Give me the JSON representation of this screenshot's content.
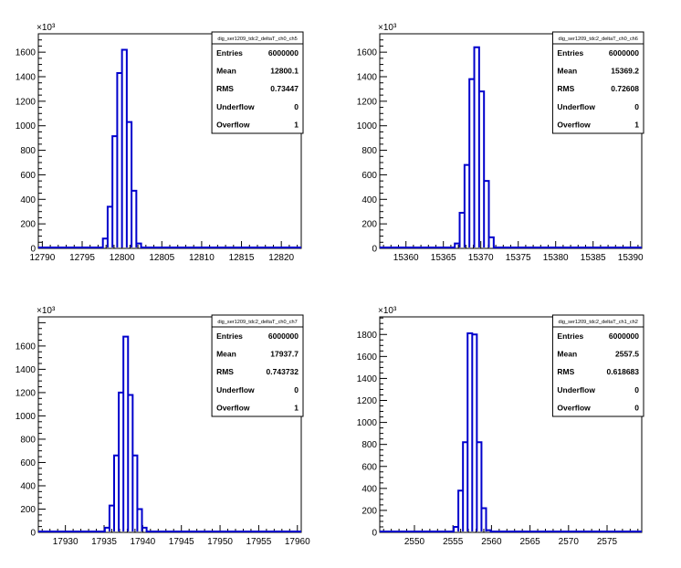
{
  "chart_data": [
    {
      "type": "histogram",
      "exponent_label": "×10³",
      "stats": {
        "title": "dig_ser1209_tdc2_deltaT_ch0_ch5",
        "rows": [
          {
            "label": "Entries",
            "value": "6000000"
          },
          {
            "label": "Mean",
            "value": "12800.1"
          },
          {
            "label": "RMS",
            "value": "0.73447"
          },
          {
            "label": "Underflow",
            "value": "0"
          },
          {
            "label": "Overflow",
            "value": "1"
          }
        ]
      },
      "xlim": [
        12789.5,
        12822.5
      ],
      "ylim": [
        0,
        1750
      ],
      "x_ticks": [
        12790,
        12795,
        12800,
        12805,
        12810,
        12815,
        12820
      ],
      "y_ticks": [
        0,
        200,
        400,
        600,
        800,
        1000,
        1200,
        1400,
        1600
      ],
      "bin_width": 0.6,
      "bins": [
        {
          "x": 12797.9,
          "y": 80
        },
        {
          "x": 12798.5,
          "y": 340
        },
        {
          "x": 12799.1,
          "y": 915
        },
        {
          "x": 12799.7,
          "y": 1430
        },
        {
          "x": 12800.3,
          "y": 1620
        },
        {
          "x": 12800.9,
          "y": 1030
        },
        {
          "x": 12801.5,
          "y": 470
        },
        {
          "x": 12802.1,
          "y": 40
        }
      ]
    },
    {
      "type": "histogram",
      "exponent_label": "×10³",
      "stats": {
        "title": "dig_ser1209_tdc2_deltaT_ch0_ch6",
        "rows": [
          {
            "label": "Entries",
            "value": "6000000"
          },
          {
            "label": "Mean",
            "value": "15369.2"
          },
          {
            "label": "RMS",
            "value": "0.72608"
          },
          {
            "label": "Underflow",
            "value": "0"
          },
          {
            "label": "Overflow",
            "value": "1"
          }
        ]
      },
      "xlim": [
        15356.5,
        15391.5
      ],
      "ylim": [
        0,
        1750
      ],
      "x_ticks": [
        15360,
        15365,
        15370,
        15375,
        15380,
        15385,
        15390
      ],
      "y_ticks": [
        0,
        200,
        400,
        600,
        800,
        1000,
        1200,
        1400,
        1600
      ],
      "bin_width": 0.65,
      "bins": [
        {
          "x": 15366.85,
          "y": 40
        },
        {
          "x": 15367.5,
          "y": 290
        },
        {
          "x": 15368.15,
          "y": 680
        },
        {
          "x": 15368.8,
          "y": 1380
        },
        {
          "x": 15369.45,
          "y": 1640
        },
        {
          "x": 15370.1,
          "y": 1280
        },
        {
          "x": 15370.75,
          "y": 550
        },
        {
          "x": 15371.4,
          "y": 90
        }
      ]
    },
    {
      "type": "histogram",
      "exponent_label": "×10³",
      "stats": {
        "title": "dig_ser1209_tdc2_deltaT_ch0_ch7",
        "rows": [
          {
            "label": "Entries",
            "value": "6000000"
          },
          {
            "label": "Mean",
            "value": "17937.7"
          },
          {
            "label": "RMS",
            "value": "0.743732"
          },
          {
            "label": "Underflow",
            "value": "0"
          },
          {
            "label": "Overflow",
            "value": "1"
          }
        ]
      },
      "xlim": [
        17926.5,
        17960.5
      ],
      "ylim": [
        0,
        1850
      ],
      "x_ticks": [
        17930,
        17935,
        17940,
        17945,
        17950,
        17955,
        17960
      ],
      "y_ticks": [
        0,
        200,
        400,
        600,
        800,
        1000,
        1200,
        1400,
        1600
      ],
      "bin_width": 0.6,
      "bins": [
        {
          "x": 17935.4,
          "y": 40
        },
        {
          "x": 17936.0,
          "y": 230
        },
        {
          "x": 17936.6,
          "y": 660
        },
        {
          "x": 17937.2,
          "y": 1200
        },
        {
          "x": 17937.8,
          "y": 1680
        },
        {
          "x": 17938.4,
          "y": 1180
        },
        {
          "x": 17939.0,
          "y": 660
        },
        {
          "x": 17939.6,
          "y": 200
        },
        {
          "x": 17940.2,
          "y": 40
        }
      ]
    },
    {
      "type": "histogram",
      "exponent_label": "×10³",
      "stats": {
        "title": "dig_ser1209_tdc2_deltaT_ch1_ch2",
        "rows": [
          {
            "label": "Entries",
            "value": "6000000"
          },
          {
            "label": "Mean",
            "value": "2557.5"
          },
          {
            "label": "RMS",
            "value": "0.618683"
          },
          {
            "label": "Underflow",
            "value": "0"
          },
          {
            "label": "Overflow",
            "value": "0"
          }
        ]
      },
      "xlim": [
        2545.5,
        2579.5
      ],
      "ylim": [
        0,
        1960
      ],
      "x_ticks": [
        2550,
        2555,
        2560,
        2565,
        2570,
        2575
      ],
      "y_ticks": [
        0,
        200,
        400,
        600,
        800,
        1000,
        1200,
        1400,
        1600,
        1800
      ],
      "bin_width": 0.6,
      "bins": [
        {
          "x": 2555.4,
          "y": 50
        },
        {
          "x": 2556.0,
          "y": 380
        },
        {
          "x": 2556.6,
          "y": 820
        },
        {
          "x": 2557.2,
          "y": 1810
        },
        {
          "x": 2557.8,
          "y": 1800
        },
        {
          "x": 2558.4,
          "y": 820
        },
        {
          "x": 2559.0,
          "y": 220
        },
        {
          "x": 2559.6,
          "y": 20
        }
      ]
    }
  ]
}
